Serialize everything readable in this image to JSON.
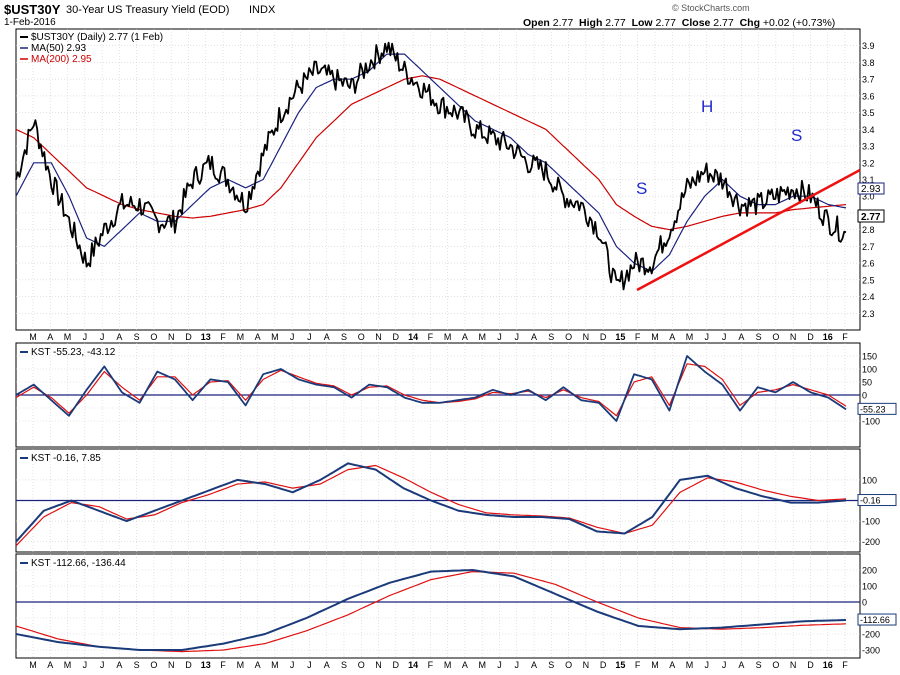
{
  "header": {
    "symbol": "$UST30Y",
    "description": "30-Year US Treasury Yield (EOD)",
    "exchange": "INDX",
    "date": "1-Feb-2016",
    "open_label": "Open",
    "open": "2.77",
    "high_label": "High",
    "high": "2.77",
    "low_label": "Low",
    "low": "2.77",
    "close_label": "Close",
    "close": "2.77",
    "chg_label": "Chg",
    "chg": "+0.02 (+0.73%)",
    "watermark": "© StockCharts.com"
  },
  "colors": {
    "price": "#000000",
    "ma50": "#1a237e",
    "ma200": "#cc0000",
    "trendline": "#ee1111",
    "kst": "#1a3a7a",
    "signal": "#e01010",
    "pattern_label": "#1f2ad0"
  },
  "legend": {
    "price": "$UST30Y (Daily) 2.77 (1 Feb)",
    "ma50": "MA(50) 2.93",
    "ma200": "MA(200) 2.95",
    "price_badge": "2.77",
    "ma_badge": "2.93"
  },
  "pattern_labels": [
    "S",
    "H",
    "S"
  ],
  "x_axis": {
    "months": [
      "M",
      "A",
      "M",
      "J",
      "J",
      "A",
      "S",
      "O",
      "N",
      "D",
      "13",
      "F",
      "M",
      "A",
      "M",
      "J",
      "J",
      "A",
      "S",
      "O",
      "N",
      "D",
      "14",
      "F",
      "M",
      "A",
      "M",
      "J",
      "J",
      "A",
      "S",
      "O",
      "N",
      "D",
      "15",
      "F",
      "M",
      "A",
      "M",
      "J",
      "J",
      "A",
      "S",
      "O",
      "N",
      "D",
      "16",
      "F"
    ]
  },
  "chart_data": [
    {
      "type": "line",
      "title": "30-Year US Treasury Yield (EOD)",
      "ylim": [
        2.2,
        4.0
      ],
      "yticks": [
        "2.3",
        "2.4",
        "2.5",
        "2.6",
        "2.7",
        "2.8",
        "2.9",
        "3.0",
        "3.1",
        "3.2",
        "3.3",
        "3.4",
        "3.5",
        "3.6",
        "3.7",
        "3.8",
        "3.9"
      ],
      "x": [
        "2012-03",
        "2012-04",
        "2012-05",
        "2012-06",
        "2012-07",
        "2012-08",
        "2012-09",
        "2012-10",
        "2012-11",
        "2012-12",
        "2013-01",
        "2013-02",
        "2013-03",
        "2013-04",
        "2013-05",
        "2013-06",
        "2013-07",
        "2013-08",
        "2013-09",
        "2013-10",
        "2013-11",
        "2013-12",
        "2014-01",
        "2014-02",
        "2014-03",
        "2014-04",
        "2014-05",
        "2014-06",
        "2014-07",
        "2014-08",
        "2014-09",
        "2014-10",
        "2014-11",
        "2014-12",
        "2015-01",
        "2015-02",
        "2015-03",
        "2015-04",
        "2015-05",
        "2015-06",
        "2015-07",
        "2015-08",
        "2015-09",
        "2015-10",
        "2015-11",
        "2015-12",
        "2016-01",
        "2016-02"
      ],
      "series": [
        {
          "name": "$UST30Y (Daily)",
          "values": [
            3.1,
            3.45,
            3.1,
            2.85,
            2.6,
            2.8,
            2.95,
            2.95,
            2.85,
            2.85,
            3.1,
            3.2,
            3.1,
            2.95,
            3.25,
            3.5,
            3.65,
            3.75,
            3.7,
            3.65,
            3.8,
            3.9,
            3.75,
            3.65,
            3.55,
            3.5,
            3.4,
            3.35,
            3.3,
            3.2,
            3.15,
            3.0,
            2.95,
            2.8,
            2.45,
            2.6,
            2.6,
            2.8,
            3.05,
            3.15,
            3.1,
            2.95,
            2.95,
            3.0,
            3.05,
            3.0,
            2.85,
            2.77
          ]
        },
        {
          "name": "MA(50)",
          "values": [
            3.0,
            3.2,
            3.2,
            3.0,
            2.75,
            2.7,
            2.8,
            2.9,
            2.85,
            2.85,
            2.95,
            3.05,
            3.1,
            3.05,
            3.1,
            3.3,
            3.5,
            3.65,
            3.7,
            3.7,
            3.75,
            3.85,
            3.85,
            3.75,
            3.65,
            3.55,
            3.45,
            3.4,
            3.35,
            3.25,
            3.2,
            3.1,
            3.0,
            2.9,
            2.7,
            2.6,
            2.55,
            2.65,
            2.85,
            3.0,
            3.1,
            3.0,
            2.95,
            2.95,
            3.0,
            3.0,
            2.95,
            2.93
          ]
        },
        {
          "name": "MA(200)",
          "values": [
            3.4,
            3.35,
            3.25,
            3.15,
            3.05,
            3.0,
            2.95,
            2.92,
            2.9,
            2.88,
            2.87,
            2.88,
            2.9,
            2.92,
            2.95,
            3.05,
            3.2,
            3.35,
            3.45,
            3.55,
            3.6,
            3.65,
            3.7,
            3.72,
            3.7,
            3.65,
            3.6,
            3.55,
            3.5,
            3.45,
            3.4,
            3.3,
            3.2,
            3.1,
            2.95,
            2.88,
            2.82,
            2.8,
            2.82,
            2.85,
            2.88,
            2.9,
            2.9,
            2.9,
            2.92,
            2.93,
            2.94,
            2.95
          ]
        }
      ]
    },
    {
      "type": "line",
      "title": "KST -55.23, -43.12",
      "ylim": [
        -200,
        200
      ],
      "yticks": [
        "150",
        "100",
        "50",
        "0",
        "-50",
        "-100"
      ],
      "series": [
        {
          "name": "KST",
          "values": [
            0,
            40,
            -20,
            -80,
            20,
            110,
            10,
            -30,
            90,
            60,
            -20,
            60,
            50,
            -40,
            80,
            100,
            60,
            40,
            30,
            -10,
            40,
            30,
            -10,
            -30,
            -30,
            -20,
            -10,
            20,
            0,
            20,
            -20,
            30,
            -20,
            -30,
            -100,
            80,
            60,
            -60,
            150,
            90,
            40,
            -60,
            30,
            10,
            50,
            10,
            -10,
            -55.23
          ]
        },
        {
          "name": "Signal",
          "values": [
            -10,
            30,
            -10,
            -70,
            0,
            90,
            30,
            -20,
            70,
            70,
            0,
            50,
            55,
            -20,
            60,
            95,
            70,
            45,
            35,
            0,
            30,
            35,
            0,
            -20,
            -30,
            -25,
            -15,
            10,
            5,
            15,
            -10,
            20,
            -10,
            -25,
            -80,
            50,
            70,
            -40,
            120,
            110,
            60,
            -40,
            10,
            20,
            40,
            20,
            0,
            -43.12
          ]
        }
      ]
    },
    {
      "type": "line",
      "title": "KST -0.16, 7.85",
      "ylim": [
        -250,
        250
      ],
      "yticks": [
        "100",
        "0",
        "-100",
        "-200"
      ],
      "series": [
        {
          "name": "KST",
          "values": [
            -200,
            -50,
            0,
            -50,
            -100,
            -50,
            0,
            50,
            100,
            80,
            40,
            100,
            180,
            150,
            60,
            0,
            -50,
            -70,
            -80,
            -80,
            -90,
            -150,
            -160,
            -80,
            100,
            120,
            60,
            20,
            -10,
            -10,
            -0.16
          ]
        },
        {
          "name": "Signal",
          "values": [
            -220,
            -80,
            -10,
            -30,
            -90,
            -70,
            -10,
            30,
            80,
            90,
            60,
            80,
            150,
            170,
            110,
            40,
            -20,
            -60,
            -70,
            -75,
            -85,
            -130,
            -160,
            -120,
            40,
            110,
            90,
            50,
            20,
            0,
            7.85
          ]
        }
      ]
    },
    {
      "type": "line",
      "title": "KST -112.66, -136.44",
      "ylim": [
        -350,
        300
      ],
      "yticks": [
        "200",
        "100",
        "0",
        "-100",
        "-200",
        "-300"
      ],
      "series": [
        {
          "name": "KST",
          "values": [
            -200,
            -250,
            -280,
            -300,
            -300,
            -260,
            -200,
            -100,
            20,
            120,
            190,
            200,
            160,
            50,
            -60,
            -150,
            -170,
            -160,
            -140,
            -120,
            -112.66
          ]
        },
        {
          "name": "Signal",
          "values": [
            -150,
            -230,
            -280,
            -300,
            -310,
            -300,
            -260,
            -180,
            -80,
            40,
            140,
            190,
            180,
            110,
            0,
            -100,
            -160,
            -170,
            -160,
            -145,
            -136.44
          ]
        }
      ]
    }
  ]
}
